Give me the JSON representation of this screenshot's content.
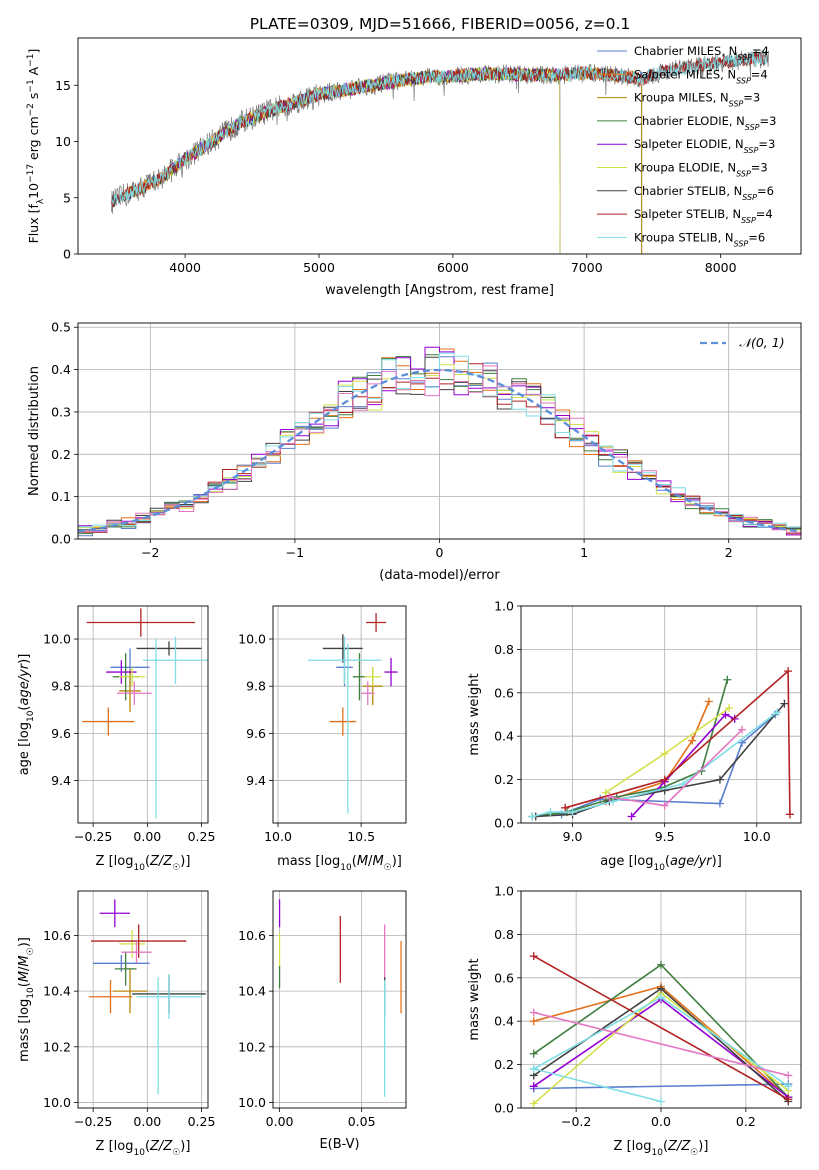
{
  "figure": {
    "title": "PLATE=0309, MJD=51666, FIBERID=0056, z=0.1"
  },
  "colors": {
    "Chabrier MILES": "#5b7fcf",
    "Salpeter MILES": "#e2711d",
    "Kroupa MILES": "#b8860b",
    "Chabrier ELODIE": "#3f7f3f",
    "Salpeter ELODIE": "#9400d3",
    "Kroupa ELODIE": "#d4e04a",
    "Chabrier STELIB": "#404040",
    "Salpeter STELIB": "#b22222",
    "Kroupa STELIB": "#7fdde6",
    "extra_pink": "#e377c2",
    "normal_dashed": "#5b8fd9"
  },
  "chart_data": [
    {
      "id": "spectrum",
      "type": "line",
      "title": "PLATE=0309, MJD=51666, FIBERID=0056, z=0.1",
      "xlabel": "wavelength [Angstrom, rest frame]",
      "ylabel": "Flux [f_λ 10^-17 erg cm^-2 s^-1 A^-1]",
      "xlim": [
        3200,
        8600
      ],
      "ylim": [
        0,
        19.2
      ],
      "xticks": [
        4000,
        5000,
        6000,
        7000,
        8000
      ],
      "yticks": [
        0,
        5,
        10,
        15
      ],
      "grid": false,
      "legend_position": "right",
      "legend": [
        "Chabrier MILES, N_SSP=4",
        "Salpeter MILES, N_SSP=4",
        "Kroupa MILES, N_SSP=3",
        "Chabrier ELODIE, N_SSP=3",
        "Salpeter ELODIE, N_SSP=3",
        "Kroupa ELODIE, N_SSP=3",
        "Chabrier STELIB, N_SSP=6",
        "Salpeter STELIB, N_SSP=4",
        "Kroupa STELIB, N_SSP=6"
      ],
      "continuum_x": [
        3450,
        3600,
        3800,
        4000,
        4200,
        4400,
        4600,
        4800,
        5000,
        5200,
        5400,
        5600,
        5800,
        6000,
        6200,
        6400,
        6600,
        6800,
        7000,
        7200,
        7400,
        7600,
        7800,
        8000,
        8200,
        8350
      ],
      "continuum_y": [
        4.6,
        5.5,
        6.6,
        8.4,
        10.0,
        11.6,
        12.6,
        13.4,
        14.2,
        14.6,
        15.0,
        15.4,
        15.7,
        15.8,
        16.0,
        16.0,
        15.9,
        15.9,
        16.1,
        15.9,
        15.6,
        16.3,
        16.7,
        17.0,
        17.3,
        17.4
      ]
    },
    {
      "id": "residuals",
      "type": "step",
      "xlabel": "(data-model)/error",
      "ylabel": "Normed distribution",
      "xlim": [
        -2.5,
        2.5
      ],
      "ylim": [
        0,
        0.51
      ],
      "xticks": [
        -2,
        -1,
        0,
        1,
        2
      ],
      "yticks": [
        0.0,
        0.1,
        0.2,
        0.3,
        0.4,
        0.5
      ],
      "grid": true,
      "legend_position": "top-right",
      "legend": [
        "𝒩(0, 1)"
      ],
      "bin_width": 0.1
    },
    {
      "id": "age_vs_Z",
      "type": "errorbar",
      "xlabel": "Z [log10(Z/Z☉)]",
      "ylabel": "age [log10(age/yr)]",
      "xlim": [
        -0.32,
        0.28
      ],
      "ylim": [
        9.22,
        10.14
      ],
      "xticks": [
        -0.25,
        0.0,
        0.25
      ],
      "yticks": [
        9.4,
        9.6,
        9.8,
        10.0
      ],
      "grid": true,
      "points": [
        {
          "color": "Chabrier MILES",
          "x": -0.08,
          "y": 9.88,
          "xerr": 0.09,
          "yerr": 0.08
        },
        {
          "color": "Salpeter MILES",
          "x": -0.18,
          "y": 9.65,
          "xerr": 0.12,
          "yerr": 0.06
        },
        {
          "color": "Kroupa MILES",
          "x": -0.08,
          "y": 9.78,
          "xerr": 0.05,
          "yerr": 0.09
        },
        {
          "color": "Chabrier ELODIE",
          "x": -0.1,
          "y": 9.84,
          "xerr": 0.06,
          "yerr": 0.1
        },
        {
          "color": "Salpeter ELODIE",
          "x": -0.12,
          "y": 9.86,
          "xerr": 0.07,
          "yerr": 0.05
        },
        {
          "color": "Kroupa ELODIE",
          "x": -0.07,
          "y": 9.84,
          "xerr": 0.06,
          "yerr": 0.04
        },
        {
          "color": "Chabrier STELIB",
          "x": 0.1,
          "y": 9.96,
          "xerr": 0.15,
          "yerr": 0.03
        },
        {
          "color": "Salpeter STELIB",
          "x": -0.03,
          "y": 10.07,
          "xerr": 0.25,
          "yerr": 0.06
        },
        {
          "color": "Kroupa STELIB",
          "x": 0.13,
          "y": 9.91,
          "xerr": 0.15,
          "yerr": 0.1
        },
        {
          "color": "extra_pink",
          "x": -0.06,
          "y": 9.77,
          "xerr": 0.08,
          "yerr": 0.05
        },
        {
          "color": "Kroupa STELIB",
          "x": 0.04,
          "y": 9.62,
          "xerr": 0.0,
          "yerr": 0.38
        }
      ]
    },
    {
      "id": "age_vs_mass",
      "type": "errorbar",
      "xlabel": "mass [log10(M/M☉)]",
      "ylabel": "",
      "xlim": [
        9.97,
        10.77
      ],
      "ylim": [
        9.22,
        10.14
      ],
      "xticks": [
        10.0,
        10.5
      ],
      "yticks": [
        9.4,
        9.6,
        9.8,
        10.0
      ],
      "grid": true,
      "points": [
        {
          "color": "Chabrier MILES",
          "x": 10.4,
          "y": 9.88,
          "xerr": 0.05,
          "yerr": 0.08
        },
        {
          "color": "Salpeter MILES",
          "x": 10.39,
          "y": 9.65,
          "xerr": 0.08,
          "yerr": 0.06
        },
        {
          "color": "Kroupa MILES",
          "x": 10.57,
          "y": 9.8,
          "xerr": 0.06,
          "yerr": 0.08
        },
        {
          "color": "Chabrier ELODIE",
          "x": 10.49,
          "y": 9.84,
          "xerr": 0.04,
          "yerr": 0.1
        },
        {
          "color": "Salpeter ELODIE",
          "x": 10.68,
          "y": 9.86,
          "xerr": 0.04,
          "yerr": 0.06
        },
        {
          "color": "Kroupa ELODIE",
          "x": 10.57,
          "y": 9.84,
          "xerr": 0.05,
          "yerr": 0.04
        },
        {
          "color": "Chabrier STELIB",
          "x": 10.39,
          "y": 9.96,
          "xerr": 0.12,
          "yerr": 0.06
        },
        {
          "color": "Salpeter STELIB",
          "x": 10.59,
          "y": 10.07,
          "xerr": 0.06,
          "yerr": 0.04
        },
        {
          "color": "Kroupa STELIB",
          "x": 10.4,
          "y": 9.91,
          "xerr": 0.22,
          "yerr": 0.1
        },
        {
          "color": "extra_pink",
          "x": 10.54,
          "y": 9.77,
          "xerr": 0.04,
          "yerr": 0.05
        },
        {
          "color": "Kroupa STELIB",
          "x": 10.42,
          "y": 9.62,
          "xerr": 0.0,
          "yerr": 0.36
        }
      ]
    },
    {
      "id": "mass_weight_vs_age",
      "type": "line",
      "xlabel": "age [log10(age/yr)]",
      "ylabel": "mass weight",
      "xlim": [
        8.72,
        10.24
      ],
      "ylim": [
        0,
        1.0
      ],
      "xticks": [
        9.0,
        9.5,
        10.0
      ],
      "yticks": [
        0.0,
        0.2,
        0.4,
        0.6,
        0.8,
        1.0
      ],
      "grid": true,
      "series": [
        {
          "color": "Chabrier MILES",
          "x": [
            8.94,
            9.15,
            9.8,
            9.92,
            10.1
          ],
          "y": [
            0.04,
            0.11,
            0.09,
            0.37,
            0.5
          ]
        },
        {
          "color": "Salpeter MILES",
          "x": [
            9.18,
            9.5,
            9.65,
            9.74
          ],
          "y": [
            0.1,
            0.19,
            0.38,
            0.56
          ]
        },
        {
          "color": "Chabrier ELODIE",
          "x": [
            8.78,
            8.97,
            9.24,
            9.48,
            9.7,
            9.84
          ],
          "y": [
            0.03,
            0.05,
            0.12,
            0.16,
            0.24,
            0.66
          ]
        },
        {
          "color": "Salpeter ELODIE",
          "x": [
            9.32,
            9.5,
            9.83,
            9.88
          ],
          "y": [
            0.03,
            0.19,
            0.5,
            0.48
          ]
        },
        {
          "color": "Kroupa ELODIE",
          "x": [
            9.18,
            9.5,
            9.85
          ],
          "y": [
            0.14,
            0.32,
            0.53
          ]
        },
        {
          "color": "Chabrier STELIB",
          "x": [
            8.8,
            9.0,
            9.2,
            9.5,
            9.8,
            10.15
          ],
          "y": [
            0.03,
            0.04,
            0.1,
            0.15,
            0.2,
            0.55
          ]
        },
        {
          "color": "Salpeter STELIB",
          "x": [
            8.96,
            9.5,
            10.17,
            10.18
          ],
          "y": [
            0.07,
            0.2,
            0.7,
            0.04
          ]
        },
        {
          "color": "Kroupa STELIB",
          "x": [
            8.78,
            8.88,
            9.0,
            9.22,
            9.6,
            10.11
          ],
          "y": [
            0.03,
            0.05,
            0.05,
            0.1,
            0.18,
            0.51
          ]
        },
        {
          "color": "extra_pink",
          "x": [
            9.2,
            9.5,
            9.92
          ],
          "y": [
            0.12,
            0.08,
            0.43
          ]
        }
      ]
    },
    {
      "id": "mass_vs_Z",
      "type": "errorbar",
      "xlabel": "Z [log10(Z/Z☉)]",
      "ylabel": "mass [log10(M/M☉)]",
      "xlim": [
        -0.32,
        0.28
      ],
      "ylim": [
        9.98,
        10.76
      ],
      "xticks": [
        -0.25,
        0.0,
        0.25
      ],
      "yticks": [
        10.0,
        10.2,
        10.4,
        10.6
      ],
      "grid": true,
      "points": [
        {
          "color": "Chabrier MILES",
          "x": -0.12,
          "y": 10.5,
          "xerr": 0.13,
          "yerr": 0.03
        },
        {
          "color": "Salpeter MILES",
          "x": -0.17,
          "y": 10.38,
          "xerr": 0.1,
          "yerr": 0.06
        },
        {
          "color": "Kroupa MILES",
          "x": -0.08,
          "y": 10.4,
          "xerr": 0.08,
          "yerr": 0.08
        },
        {
          "color": "Chabrier ELODIE",
          "x": -0.1,
          "y": 10.48,
          "xerr": 0.05,
          "yerr": 0.06
        },
        {
          "color": "Salpeter ELODIE",
          "x": -0.15,
          "y": 10.68,
          "xerr": 0.07,
          "yerr": 0.05
        },
        {
          "color": "Kroupa ELODIE",
          "x": -0.07,
          "y": 10.57,
          "xerr": 0.06,
          "yerr": 0.05
        },
        {
          "color": "Chabrier STELIB",
          "x": 0.1,
          "y": 10.39,
          "xerr": 0.17,
          "yerr": 0.07
        },
        {
          "color": "Salpeter STELIB",
          "x": -0.04,
          "y": 10.58,
          "xerr": 0.22,
          "yerr": 0.06
        },
        {
          "color": "Kroupa STELIB",
          "x": 0.1,
          "y": 10.38,
          "xerr": 0.15,
          "yerr": 0.08
        },
        {
          "color": "extra_pink",
          "x": -0.05,
          "y": 10.54,
          "xerr": 0.07,
          "yerr": 0.04
        },
        {
          "color": "Kroupa STELIB",
          "x": 0.05,
          "y": 10.24,
          "xerr": 0.0,
          "yerr": 0.21
        }
      ]
    },
    {
      "id": "mass_vs_EBV",
      "type": "errorbar",
      "xlabel": "E(B-V)",
      "ylabel": "",
      "xlim": [
        -0.004,
        0.077
      ],
      "ylim": [
        9.98,
        10.76
      ],
      "xticks": [
        0.0,
        0.05
      ],
      "yticks": [
        10.0,
        10.2,
        10.4,
        10.6
      ],
      "grid": true,
      "points": [
        {
          "color": "Salpeter ELODIE",
          "x": 0.0,
          "y": 10.68,
          "xerr": 0.0,
          "yerr": 0.05
        },
        {
          "color": "Kroupa ELODIE",
          "x": 0.0,
          "y": 10.55,
          "xerr": 0.0,
          "yerr": 0.06
        },
        {
          "color": "Chabrier ELODIE",
          "x": 0.0,
          "y": 10.45,
          "xerr": 0.0,
          "yerr": 0.04
        },
        {
          "color": "Salpeter STELIB",
          "x": 0.037,
          "y": 10.55,
          "xerr": 0.0,
          "yerr": 0.12
        },
        {
          "color": "extra_pink",
          "x": 0.064,
          "y": 10.54,
          "xerr": 0.0,
          "yerr": 0.1
        },
        {
          "color": "Chabrier STELIB",
          "x": 0.064,
          "y": 10.38,
          "xerr": 0.0,
          "yerr": 0.07
        },
        {
          "color": "Kroupa STELIB",
          "x": 0.064,
          "y": 10.23,
          "xerr": 0.0,
          "yerr": 0.21
        },
        {
          "color": "Salpeter MILES",
          "x": 0.074,
          "y": 10.45,
          "xerr": 0.0,
          "yerr": 0.13
        }
      ]
    },
    {
      "id": "mass_weight_vs_Z",
      "type": "line",
      "xlabel": "Z [log10(Z/Z☉)]",
      "ylabel": "mass weight",
      "xlim": [
        -0.33,
        0.33
      ],
      "ylim": [
        0,
        1.0
      ],
      "xticks": [
        -0.2,
        0.0,
        0.2
      ],
      "yticks": [
        0.0,
        0.2,
        0.4,
        0.6,
        0.8,
        1.0
      ],
      "grid": true,
      "series": [
        {
          "color": "Chabrier MILES",
          "x": [
            -0.3,
            0.3
          ],
          "y": [
            0.09,
            0.11
          ]
        },
        {
          "color": "Salpeter MILES",
          "x": [
            -0.3,
            0.0,
            0.3
          ],
          "y": [
            0.4,
            0.56,
            0.05
          ]
        },
        {
          "color": "Chabrier ELODIE",
          "x": [
            -0.3,
            0.0,
            0.3
          ],
          "y": [
            0.25,
            0.66,
            0.05
          ]
        },
        {
          "color": "Salpeter ELODIE",
          "x": [
            -0.3,
            0.0,
            0.3
          ],
          "y": [
            0.1,
            0.5,
            0.05
          ]
        },
        {
          "color": "Kroupa ELODIE",
          "x": [
            -0.3,
            0.0,
            0.3
          ],
          "y": [
            0.02,
            0.53,
            0.08
          ]
        },
        {
          "color": "Chabrier STELIB",
          "x": [
            -0.3,
            0.0,
            0.3
          ],
          "y": [
            0.15,
            0.55,
            0.03
          ]
        },
        {
          "color": "Salpeter STELIB",
          "x": [
            -0.3,
            0.3
          ],
          "y": [
            0.7,
            0.04
          ]
        },
        {
          "color": "Kroupa STELIB",
          "x": [
            -0.3,
            0.0,
            0.3
          ],
          "y": [
            0.18,
            0.51,
            0.1
          ]
        },
        {
          "color": "extra_pink",
          "x": [
            -0.3,
            0.3
          ],
          "y": [
            0.44,
            0.15
          ]
        },
        {
          "color": "Kroupa STELIB",
          "x": [
            -0.3,
            0.0
          ],
          "y": [
            0.18,
            0.03
          ]
        }
      ]
    }
  ]
}
